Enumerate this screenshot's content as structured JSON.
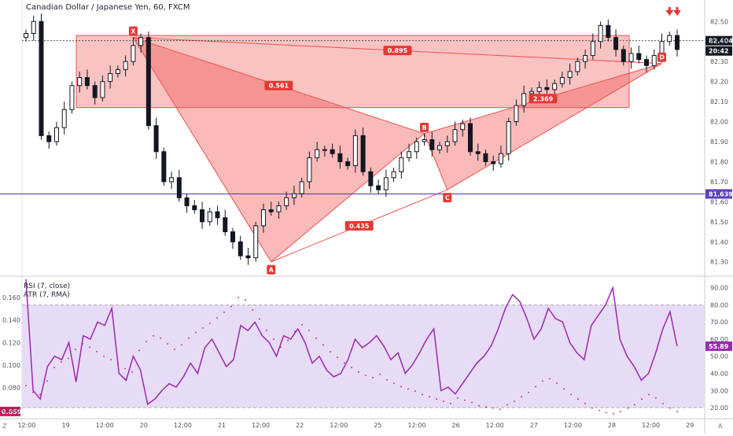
{
  "header": {
    "title": "Canadian Dollar / Japanese Yen, 60, FXCM"
  },
  "indicators": {
    "rsi_label": "RSI (7, close)",
    "atr_label": "ATR (7, RMA)"
  },
  "corner": {
    "left": "Z",
    "right": "A"
  },
  "colors": {
    "pattern_fill": "#ef5350",
    "candle": "#131722",
    "hline": "#5b3fbf",
    "rsi_line": "#9c27b0",
    "rsi_band": "#e1d3f2",
    "arrow": "#e53935"
  },
  "chart_data": [
    {
      "type": "candlestick",
      "title": "Canadian Dollar / Japanese Yen, 60, FXCM",
      "x_ticks": [
        "12:00",
        "19",
        "12:00",
        "20",
        "12:00",
        "21",
        "12:00",
        "22",
        "12:00",
        "25",
        "12:00",
        "26",
        "12:00",
        "27",
        "12:00",
        "28",
        "12:00",
        "29"
      ],
      "y_ticks": [
        82.5,
        82.4,
        82.3,
        82.2,
        82.1,
        82.0,
        81.9,
        81.8,
        81.7,
        81.6,
        81.5,
        81.4,
        81.3
      ],
      "ylim": [
        81.24,
        82.56
      ],
      "current_price": {
        "label": "82.404",
        "value": 82.404,
        "countdown": "20:42"
      },
      "support_line": {
        "label": "81.639",
        "value": 81.639
      },
      "harmonic_points": [
        {
          "label": "X",
          "value": 82.42
        },
        {
          "label": "A",
          "value": 81.3
        },
        {
          "label": "B",
          "value": 81.94
        },
        {
          "label": "C",
          "value": 81.66
        },
        {
          "label": "D",
          "value": 82.29
        }
      ],
      "ratios": [
        "0.561",
        "0.435",
        "2.369",
        "0.895"
      ],
      "zone": {
        "high": 82.43,
        "low": 82.07
      },
      "closes": [
        82.44,
        82.5,
        81.93,
        81.9,
        81.97,
        82.06,
        82.18,
        82.22,
        82.18,
        82.12,
        82.2,
        82.24,
        82.26,
        82.3,
        82.38,
        82.42,
        81.98,
        81.85,
        81.7,
        81.72,
        81.62,
        81.58,
        81.56,
        81.5,
        81.55,
        81.52,
        81.45,
        81.4,
        81.33,
        81.32,
        81.48,
        81.56,
        81.55,
        81.58,
        81.62,
        81.64,
        81.7,
        81.82,
        81.86,
        81.86,
        81.84,
        81.8,
        81.78,
        81.93,
        81.75,
        81.68,
        81.66,
        81.72,
        81.75,
        81.82,
        81.85,
        81.9,
        81.91,
        81.86,
        81.88,
        81.9,
        81.96,
        81.99,
        81.85,
        81.84,
        81.8,
        81.79,
        81.84,
        82.0,
        82.08,
        82.14,
        82.15,
        82.17,
        82.16,
        82.19,
        82.22,
        82.25,
        82.3,
        82.33,
        82.4,
        82.48,
        82.42,
        82.36,
        82.3,
        82.34,
        82.31,
        82.28,
        82.33,
        82.4,
        82.43,
        82.36
      ]
    },
    {
      "type": "line",
      "title": "RSI (7, close)",
      "y_ticks": [
        90.0,
        80.0,
        70.0,
        60.0,
        50.0,
        40.0,
        30.0,
        20.0
      ],
      "ylim": [
        14.5,
        93.5
      ],
      "bands": [
        80,
        20
      ],
      "current_value": {
        "label": "55.89",
        "value": 55.89
      },
      "values": [
        95,
        30,
        25,
        44,
        50,
        48,
        58,
        35,
        62,
        60,
        70,
        68,
        78,
        40,
        36,
        50,
        42,
        22,
        25,
        30,
        34,
        32,
        38,
        46,
        40,
        55,
        60,
        52,
        44,
        48,
        68,
        65,
        70,
        62,
        58,
        50,
        62,
        60,
        66,
        58,
        46,
        50,
        42,
        38,
        40,
        48,
        60,
        55,
        58,
        62,
        56,
        48,
        52,
        40,
        45,
        52,
        60,
        66,
        30,
        32,
        28,
        34,
        40,
        46,
        50,
        56,
        66,
        78,
        86,
        82,
        72,
        60,
        66,
        78,
        72,
        70,
        58,
        52,
        48,
        68,
        74,
        80,
        90,
        60,
        50,
        44,
        36,
        40,
        52,
        66,
        76,
        55.89
      ]
    },
    {
      "type": "scatter",
      "title": "ATR (7, RMA)",
      "y_ticks": [
        0.16,
        0.14,
        0.12,
        0.1,
        0.08,
        0.06
      ],
      "ylim": [
        0.054,
        0.174
      ],
      "current_value": {
        "label": "0.059",
        "value": 0.059
      },
      "values": [
        0.082,
        0.076,
        0.074,
        0.086,
        0.098,
        0.103,
        0.106,
        0.114,
        0.119,
        0.116,
        0.112,
        0.108,
        0.105,
        0.101,
        0.097,
        0.094,
        0.113,
        0.121,
        0.126,
        0.124,
        0.119,
        0.114,
        0.118,
        0.124,
        0.129,
        0.133,
        0.137,
        0.142,
        0.147,
        0.152,
        0.16,
        0.158,
        0.149,
        0.141,
        0.131,
        0.123,
        0.116,
        0.122,
        0.13,
        0.136,
        0.131,
        0.124,
        0.118,
        0.112,
        0.107,
        0.102,
        0.098,
        0.094,
        0.091,
        0.089,
        0.092,
        0.087,
        0.084,
        0.081,
        0.079,
        0.077,
        0.074,
        0.072,
        0.07,
        0.068,
        0.066,
        0.071,
        0.069,
        0.067,
        0.064,
        0.063,
        0.062,
        0.061,
        0.065,
        0.068,
        0.072,
        0.076,
        0.081,
        0.086,
        0.088,
        0.084,
        0.079,
        0.074,
        0.07,
        0.066,
        0.062,
        0.06,
        0.058,
        0.057,
        0.059,
        0.062,
        0.065,
        0.07,
        0.074,
        0.071,
        0.066,
        0.062,
        0.059
      ]
    }
  ]
}
